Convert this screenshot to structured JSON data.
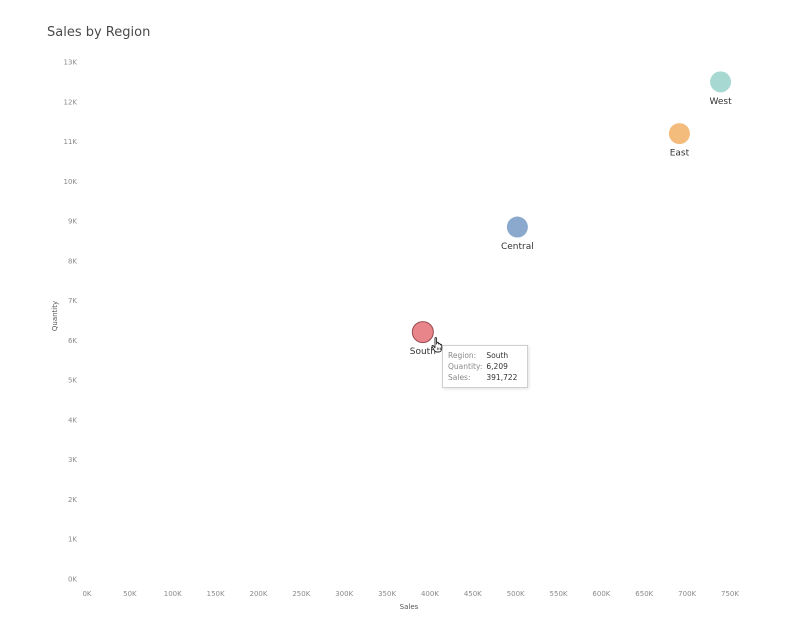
{
  "chart_data": {
    "type": "scatter",
    "title": "Sales by Region",
    "xlabel": "Sales",
    "ylabel": "Quantity",
    "xlim": [
      0,
      750000
    ],
    "ylim": [
      0,
      13000
    ],
    "x_ticks": [
      "0K",
      "50K",
      "100K",
      "150K",
      "200K",
      "250K",
      "300K",
      "350K",
      "400K",
      "450K",
      "500K",
      "550K",
      "600K",
      "650K",
      "700K",
      "750K"
    ],
    "y_ticks": [
      "0K",
      "1K",
      "2K",
      "3K",
      "4K",
      "5K",
      "6K",
      "7K",
      "8K",
      "9K",
      "10K",
      "11K",
      "12K",
      "13K"
    ],
    "grid": false,
    "points": [
      {
        "label": "West",
        "x": 739000,
        "y": 12500,
        "color": "#a8d8d2"
      },
      {
        "label": "East",
        "x": 691000,
        "y": 11200,
        "color": "#f3bb7c"
      },
      {
        "label": "Central",
        "x": 502000,
        "y": 8850,
        "color": "#8aa9cd"
      },
      {
        "label": "South",
        "x": 391722,
        "y": 6209,
        "color": "#e8858a"
      }
    ]
  },
  "tooltip": {
    "rows": [
      {
        "key": "Region:",
        "value": "South"
      },
      {
        "key": "Quantity:",
        "value": "6,209"
      },
      {
        "key": "Sales:",
        "value": "391,722"
      }
    ]
  }
}
